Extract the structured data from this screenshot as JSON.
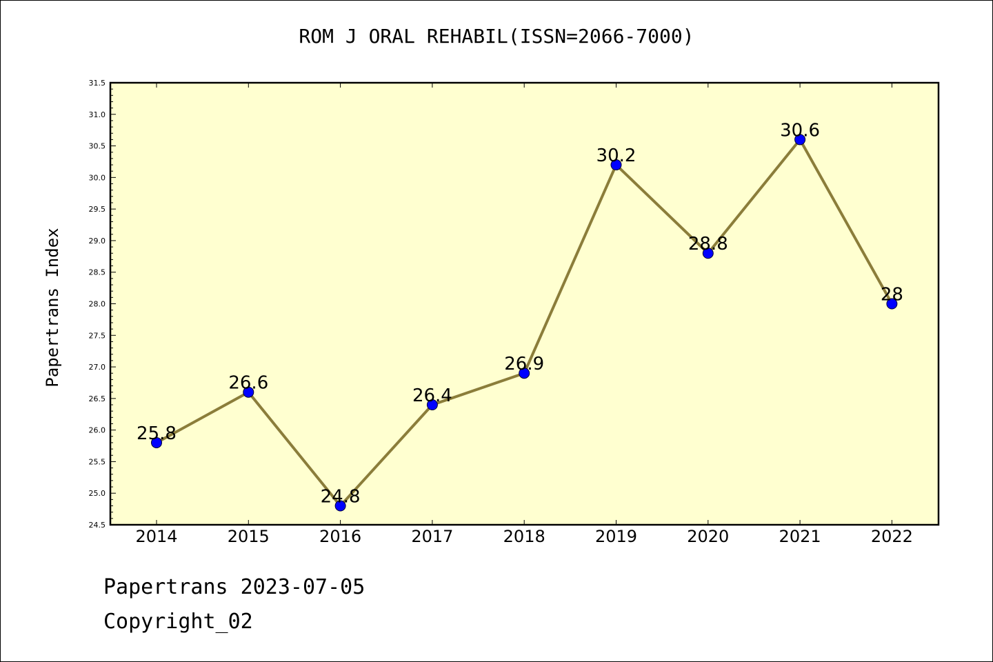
{
  "chart_data": {
    "type": "line",
    "title": "ROM J ORAL REHABIL(ISSN=2066-7000)",
    "xlabel": "",
    "ylabel": "Papertrans Index",
    "categories": [
      "2014",
      "2015",
      "2016",
      "2017",
      "2018",
      "2019",
      "2020",
      "2021",
      "2022"
    ],
    "series": [
      {
        "values": [
          25.8,
          26.6,
          24.8,
          26.4,
          26.9,
          30.2,
          28.8,
          30.6,
          28.0
        ]
      }
    ],
    "data_labels": [
      "25.8",
      "26.6",
      "24.8",
      "26.4",
      "26.9",
      "30.2",
      "28.8",
      "30.6",
      "28"
    ],
    "ylim": [
      24.5,
      31.5
    ],
    "yticks": [
      "24.5",
      "25.0",
      "25.5",
      "26.0",
      "26.5",
      "27.0",
      "27.5",
      "28.0",
      "28.5",
      "29.0",
      "29.5",
      "30.0",
      "30.5",
      "31.0",
      "31.5"
    ],
    "grid": false,
    "colors": {
      "plot_background": "#ffffd0",
      "line": "#8b7d3a",
      "marker": "#0000ff"
    }
  },
  "footer": {
    "line1": "Papertrans 2023-07-05",
    "line2": "Copyright_02"
  }
}
